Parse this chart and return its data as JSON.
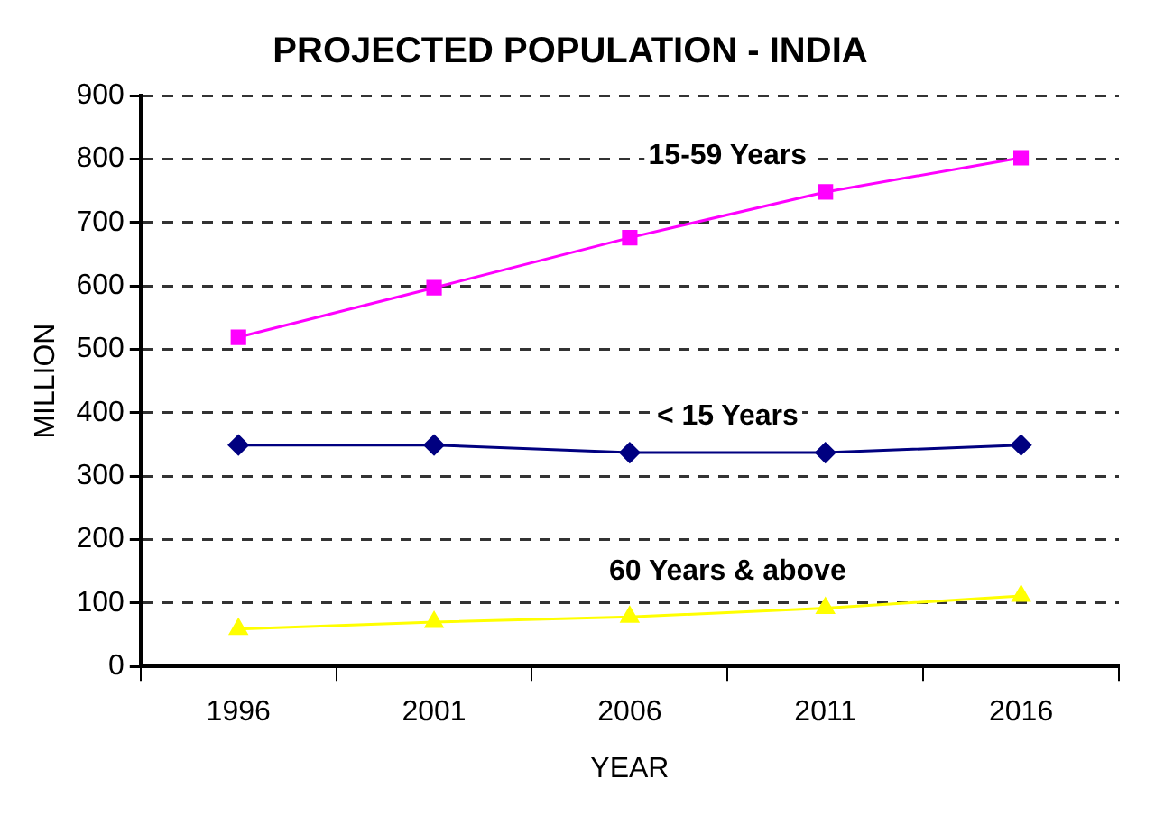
{
  "chart_data": {
    "type": "line",
    "title": "PROJECTED POPULATION - INDIA",
    "xlabel": "YEAR",
    "ylabel": "MILLION",
    "categories": [
      "1996",
      "2001",
      "2006",
      "2011",
      "2016"
    ],
    "series": [
      {
        "name": "15-59 Years",
        "color": "#ff00ff",
        "marker": "square",
        "values": [
          519,
          597,
          676,
          748,
          802
        ]
      },
      {
        "name": "< 15 Years",
        "color": "#000080",
        "marker": "diamond",
        "values": [
          349,
          349,
          337,
          337,
          349
        ]
      },
      {
        "name": "60 Years & above",
        "color": "#ffff00",
        "marker": "triangle",
        "values": [
          59,
          70,
          78,
          92,
          111
        ]
      }
    ],
    "ylim": [
      0,
      900
    ],
    "yticks": [
      0,
      100,
      200,
      300,
      400,
      500,
      600,
      700,
      800,
      900
    ],
    "grid": "y",
    "legend": false,
    "line_style": "solid"
  }
}
